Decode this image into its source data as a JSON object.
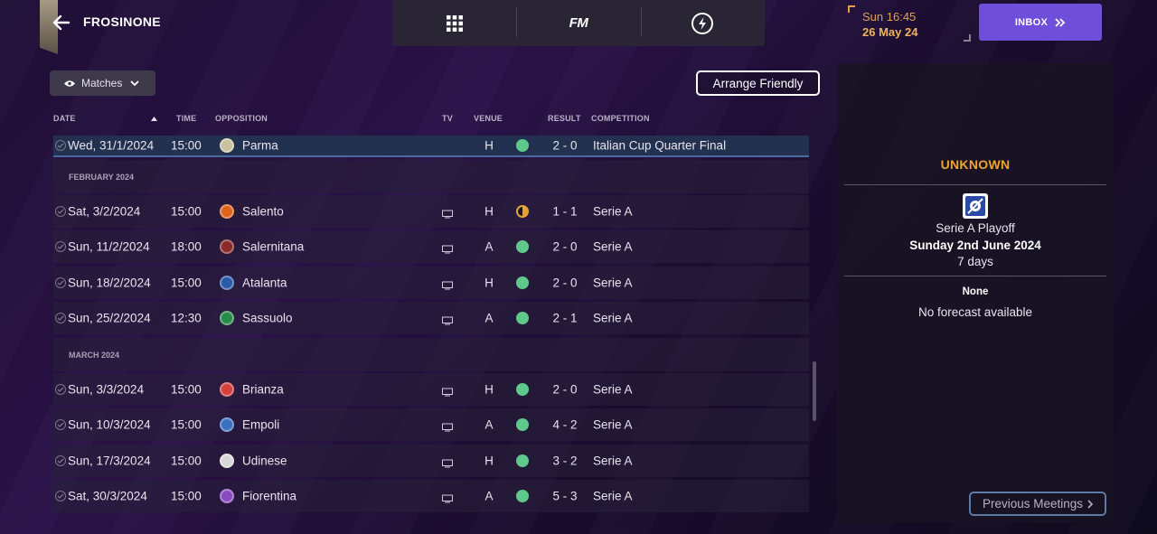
{
  "header": {
    "club_name": "FROSINONE",
    "clock_time": "Sun 16:45",
    "clock_date": "26 May 24",
    "inbox_label": "INBOX",
    "fm_label": "FM"
  },
  "filter": {
    "matches_label": "Matches"
  },
  "actions": {
    "arrange_friendly": "Arrange Friendly"
  },
  "columns": {
    "date": "DATE",
    "time": "TIME",
    "opposition": "OPPOSITION",
    "tv": "TV",
    "venue": "VENUE",
    "result": "RESULT",
    "competition": "COMPETITION"
  },
  "months": {
    "feb": "FEBRUARY 2024",
    "mar": "MARCH 2024"
  },
  "fixtures": [
    {
      "date": "Wed, 31/1/2024",
      "time": "15:00",
      "opposition": "Parma",
      "venue": "H",
      "result": "2 - 0",
      "competition": "Italian Cup Quarter Final",
      "outcome": "win",
      "crest": "#c9c2a0"
    },
    {
      "date": "Sat, 3/2/2024",
      "time": "15:00",
      "opposition": "Salento",
      "venue": "H",
      "result": "1 - 1",
      "competition": "Serie A",
      "outcome": "draw",
      "crest": "#e0641a"
    },
    {
      "date": "Sun, 11/2/2024",
      "time": "18:00",
      "opposition": "Salernitana",
      "venue": "A",
      "result": "2 - 0",
      "competition": "Serie A",
      "outcome": "win",
      "crest": "#8a2a2a"
    },
    {
      "date": "Sun, 18/2/2024",
      "time": "15:00",
      "opposition": "Atalanta",
      "venue": "H",
      "result": "2 - 0",
      "competition": "Serie A",
      "outcome": "win",
      "crest": "#2a5aa8"
    },
    {
      "date": "Sun, 25/2/2024",
      "time": "12:30",
      "opposition": "Sassuolo",
      "venue": "A",
      "result": "2 - 1",
      "competition": "Serie A",
      "outcome": "win",
      "crest": "#2a8a4a"
    },
    {
      "date": "Sun, 3/3/2024",
      "time": "15:00",
      "opposition": "Brianza",
      "venue": "H",
      "result": "2 - 0",
      "competition": "Serie A",
      "outcome": "win",
      "crest": "#d84040"
    },
    {
      "date": "Sun, 10/3/2024",
      "time": "15:00",
      "opposition": "Empoli",
      "venue": "A",
      "result": "4 - 2",
      "competition": "Serie A",
      "outcome": "win",
      "crest": "#3a70c0"
    },
    {
      "date": "Sun, 17/3/2024",
      "time": "15:00",
      "opposition": "Udinese",
      "venue": "H",
      "result": "3 - 2",
      "competition": "Serie A",
      "outcome": "win",
      "crest": "#d8d8d8"
    },
    {
      "date": "Sat, 30/3/2024",
      "time": "15:00",
      "opposition": "Fiorentina",
      "venue": "A",
      "result": "5 - 3",
      "competition": "Serie A",
      "outcome": "win",
      "crest": "#8a4ac0"
    }
  ],
  "colors": {
    "win": "#5ec98a",
    "draw": "#e0a43a",
    "accent": "#6f4ed9",
    "unknown": "#f0a530"
  },
  "panel": {
    "heading": "UNKNOWN",
    "competition": "Serie A Playoff",
    "match_date": "Sunday 2nd June 2024",
    "countdown": "7 days",
    "forecast_title": "None",
    "forecast_text": "No forecast available",
    "previous_meetings": "Previous Meetings"
  }
}
